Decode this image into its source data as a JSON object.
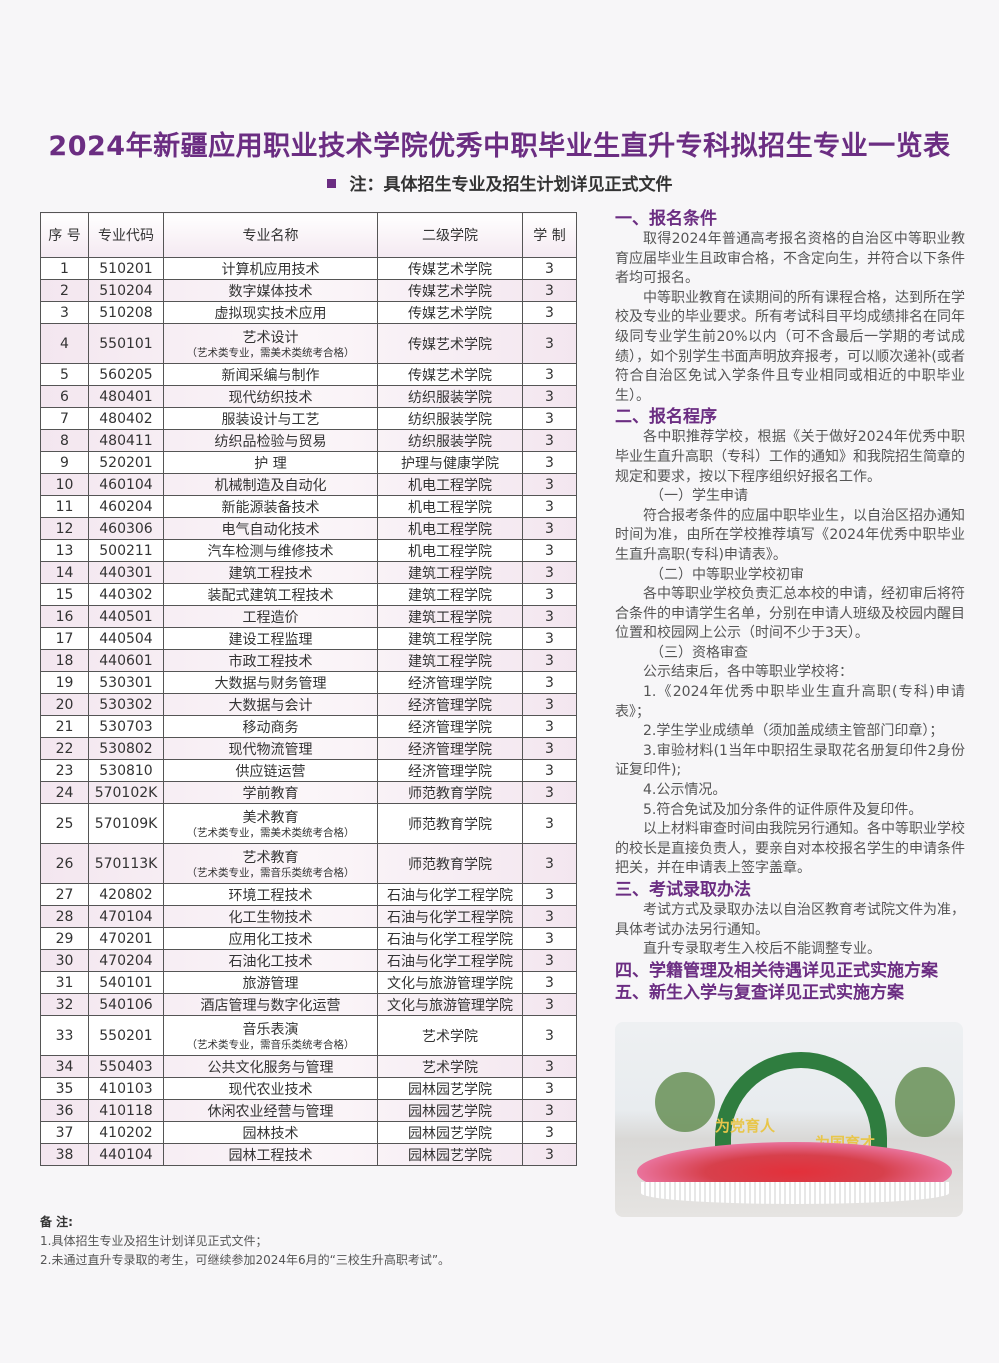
{
  "title": "2024年新疆应用职业技术学院优秀中职毕业生直升专科拟招生专业一览表",
  "subnote": "注：具体招生专业及招生计划详见正式文件",
  "colors": {
    "accent": "#6b2d82"
  },
  "table": {
    "headers": [
      "序 号",
      "专业代码",
      "专业名称",
      "二级学院",
      "学 制"
    ],
    "rows": [
      {
        "no": "1",
        "code": "510201",
        "name": "计算机应用技术",
        "note": "",
        "college": "传媒艺术学院",
        "years": "3"
      },
      {
        "no": "2",
        "code": "510204",
        "name": "数字媒体技术",
        "note": "",
        "college": "传媒艺术学院",
        "years": "3"
      },
      {
        "no": "3",
        "code": "510208",
        "name": "虚拟现实技术应用",
        "note": "",
        "college": "传媒艺术学院",
        "years": "3"
      },
      {
        "no": "4",
        "code": "550101",
        "name": "艺术设计",
        "note": "（艺术类专业，需美术类统考合格）",
        "college": "传媒艺术学院",
        "years": "3"
      },
      {
        "no": "5",
        "code": "560205",
        "name": "新闻采编与制作",
        "note": "",
        "college": "传媒艺术学院",
        "years": "3"
      },
      {
        "no": "6",
        "code": "480401",
        "name": "现代纺织技术",
        "note": "",
        "college": "纺织服装学院",
        "years": "3"
      },
      {
        "no": "7",
        "code": "480402",
        "name": "服装设计与工艺",
        "note": "",
        "college": "纺织服装学院",
        "years": "3"
      },
      {
        "no": "8",
        "code": "480411",
        "name": "纺织品检验与贸易",
        "note": "",
        "college": "纺织服装学院",
        "years": "3"
      },
      {
        "no": "9",
        "code": "520201",
        "name": "护 理",
        "note": "",
        "college": "护理与健康学院",
        "years": "3"
      },
      {
        "no": "10",
        "code": "460104",
        "name": "机械制造及自动化",
        "note": "",
        "college": "机电工程学院",
        "years": "3"
      },
      {
        "no": "11",
        "code": "460204",
        "name": "新能源装备技术",
        "note": "",
        "college": "机电工程学院",
        "years": "3"
      },
      {
        "no": "12",
        "code": "460306",
        "name": "电气自动化技术",
        "note": "",
        "college": "机电工程学院",
        "years": "3"
      },
      {
        "no": "13",
        "code": "500211",
        "name": "汽车检测与维修技术",
        "note": "",
        "college": "机电工程学院",
        "years": "3"
      },
      {
        "no": "14",
        "code": "440301",
        "name": "建筑工程技术",
        "note": "",
        "college": "建筑工程学院",
        "years": "3"
      },
      {
        "no": "15",
        "code": "440302",
        "name": "装配式建筑工程技术",
        "note": "",
        "college": "建筑工程学院",
        "years": "3"
      },
      {
        "no": "16",
        "code": "440501",
        "name": "工程造价",
        "note": "",
        "college": "建筑工程学院",
        "years": "3"
      },
      {
        "no": "17",
        "code": "440504",
        "name": "建设工程监理",
        "note": "",
        "college": "建筑工程学院",
        "years": "3"
      },
      {
        "no": "18",
        "code": "440601",
        "name": "市政工程技术",
        "note": "",
        "college": "建筑工程学院",
        "years": "3"
      },
      {
        "no": "19",
        "code": "530301",
        "name": "大数据与财务管理",
        "note": "",
        "college": "经济管理学院",
        "years": "3"
      },
      {
        "no": "20",
        "code": "530302",
        "name": "大数据与会计",
        "note": "",
        "college": "经济管理学院",
        "years": "3"
      },
      {
        "no": "21",
        "code": "530703",
        "name": "移动商务",
        "note": "",
        "college": "经济管理学院",
        "years": "3"
      },
      {
        "no": "22",
        "code": "530802",
        "name": "现代物流管理",
        "note": "",
        "college": "经济管理学院",
        "years": "3"
      },
      {
        "no": "23",
        "code": "530810",
        "name": "供应链运营",
        "note": "",
        "college": "经济管理学院",
        "years": "3"
      },
      {
        "no": "24",
        "code": "570102K",
        "name": "学前教育",
        "note": "",
        "college": "师范教育学院",
        "years": "3"
      },
      {
        "no": "25",
        "code": "570109K",
        "name": "美术教育",
        "note": "（艺术类专业，需美术类统考合格）",
        "college": "师范教育学院",
        "years": "3"
      },
      {
        "no": "26",
        "code": "570113K",
        "name": "艺术教育",
        "note": "（艺术类专业，需音乐类统考合格）",
        "college": "师范教育学院",
        "years": "3"
      },
      {
        "no": "27",
        "code": "420802",
        "name": "环境工程技术",
        "note": "",
        "college": "石油与化学工程学院",
        "years": "3"
      },
      {
        "no": "28",
        "code": "470104",
        "name": "化工生物技术",
        "note": "",
        "college": "石油与化学工程学院",
        "years": "3"
      },
      {
        "no": "29",
        "code": "470201",
        "name": "应用化工技术",
        "note": "",
        "college": "石油与化学工程学院",
        "years": "3"
      },
      {
        "no": "30",
        "code": "470204",
        "name": "石油化工技术",
        "note": "",
        "college": "石油与化学工程学院",
        "years": "3"
      },
      {
        "no": "31",
        "code": "540101",
        "name": "旅游管理",
        "note": "",
        "college": "文化与旅游管理学院",
        "years": "3"
      },
      {
        "no": "32",
        "code": "540106",
        "name": "酒店管理与数字化运营",
        "note": "",
        "college": "文化与旅游管理学院",
        "years": "3"
      },
      {
        "no": "33",
        "code": "550201",
        "name": "音乐表演",
        "note": "（艺术类专业，需音乐类统考合格）",
        "college": "艺术学院",
        "years": "3"
      },
      {
        "no": "34",
        "code": "550403",
        "name": "公共文化服务与管理",
        "note": "",
        "college": "艺术学院",
        "years": "3"
      },
      {
        "no": "35",
        "code": "410103",
        "name": "现代农业技术",
        "note": "",
        "college": "园林园艺学院",
        "years": "3"
      },
      {
        "no": "36",
        "code": "410118",
        "name": "休闲农业经营与管理",
        "note": "",
        "college": "园林园艺学院",
        "years": "3"
      },
      {
        "no": "37",
        "code": "410202",
        "name": "园林技术",
        "note": "",
        "college": "园林园艺学院",
        "years": "3"
      },
      {
        "no": "38",
        "code": "440104",
        "name": "园林工程技术",
        "note": "",
        "college": "园林园艺学院",
        "years": "3"
      }
    ]
  },
  "notes": {
    "heading": "备 注:",
    "items": [
      "1.具体招生专业及招生计划详见正式文件；",
      "2.未通过直升专录取的考生，可继续参加2024年6月的“三校生升高职考试”。"
    ]
  },
  "right": {
    "s1_title": "一、报名条件",
    "s1_p1": "取得2024年普通高考报名资格的自治区中等职业教育应届毕业生且政审合格，不含定向生，并符合以下条件者均可报名。",
    "s1_p2": "中等职业教育在读期间的所有课程合格，达到所在学校及专业的毕业要求。所有考试科目平均成绩排名在同年级同专业学生前20%以内（可不含最后一学期的考试成绩），如个别学生书面声明放弃报考，可以顺次递补(或者符合自治区免试入学条件且专业相同或相近的中职毕业生）。",
    "s2_title": "二、报名程序",
    "s2_p1": "各中职推荐学校，根据《关于做好2024年优秀中职毕业生直升高职（专科）工作的通知》和我院招生简章的规定和要求，按以下程序组织好报名工作。",
    "s2_sub1": "（一）学生申请",
    "s2_p2": "符合报考条件的应届中职毕业生，以自治区招办通知时间为准，由所在学校推荐填写《2024年优秀中职毕业生直升高职(专科)申请表》。",
    "s2_sub2": "（二）中等职业学校初审",
    "s2_p3": "各中等职业学校负责汇总本校的申请，经初审后将符合条件的申请学生名单，分别在申请人班级及校园内醒目位置和校园网上公示（时间不少于3天）。",
    "s2_sub3": "（三）资格审查",
    "s2_p4": "公示结束后，各中等职业学校将：",
    "s2_l1": "1.《2024年优秀中职毕业生直升高职(专科)申请表》；",
    "s2_l2": "2.学生学业成绩单（须加盖成绩主管部门印章）；",
    "s2_l3": "3.审验材料(1当年中职招生录取花名册复印件2身份证复印件);",
    "s2_l4": "4.公示情况。",
    "s2_l5": "5.符合免试及加分条件的证件原件及复印件。",
    "s2_p5": "以上材料审查时间由我院另行通知。各中等职业学校的校长是直接负责人，要亲自对本校报名学生的申请条件把关，并在申请表上签字盖章。",
    "s3_title": "三、考试录取办法",
    "s3_p1": "考试方式及录取办法以自治区教育考试院文件为准，具体考试办法另行通知。",
    "s3_p2": "直升专录取考生入校后不能调整专业。",
    "s4_title": "四、学籍管理及相关待遇详见正式实施方案",
    "s5_title": "五、新生入学与复查详见正式实施方案"
  },
  "photo": {
    "slogan_left": "为党育人",
    "slogan_right": "为国育才"
  }
}
